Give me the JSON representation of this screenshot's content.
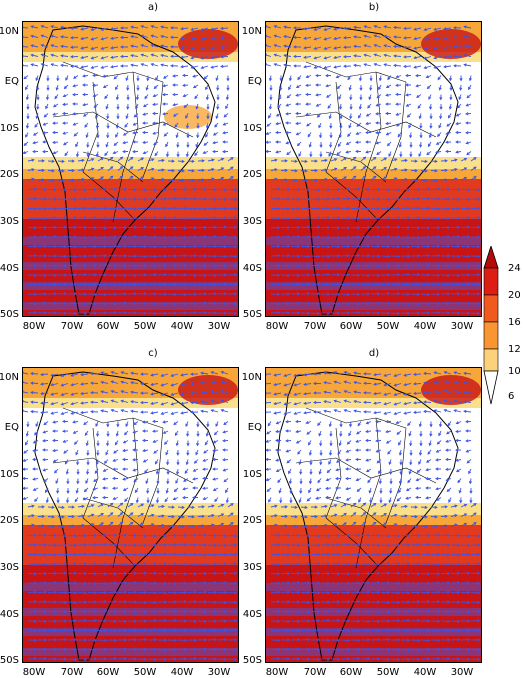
{
  "panels": [
    {
      "label": "a)"
    },
    {
      "label": "b)"
    },
    {
      "label": "c)"
    },
    {
      "label": "d)"
    }
  ],
  "lat_labels": [
    "10N",
    "EQ",
    "10S",
    "20S",
    "30S",
    "40S",
    "50S"
  ],
  "lon_labels": [
    "80W",
    "70W",
    "60W",
    "50W",
    "40W",
    "30W"
  ],
  "colorbar": {
    "ticks": [
      "24",
      "20",
      "16",
      "12",
      "10",
      "6"
    ],
    "colors": [
      "#b40a0a",
      "#dc1e14",
      "#f05a1e",
      "#fa9632",
      "#fbd27a",
      "#ffffff"
    ]
  },
  "colors": {
    "vector": "#3c55e6",
    "coast": "#000000",
    "level_low": "#fbe08c",
    "level_mid": "#f7a63a",
    "level_high": "#e23a1e",
    "level_top": "#c81414",
    "band_purple": "#5a50c8"
  }
}
